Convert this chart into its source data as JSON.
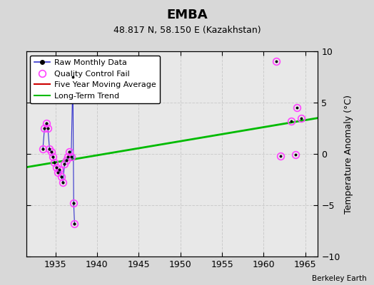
{
  "title": "EMBA",
  "subtitle": "48.817 N, 58.150 E (Kazakhstan)",
  "ylabel_right": "Temperature Anomaly (°C)",
  "credit": "Berkeley Earth",
  "xlim": [
    1931.5,
    1966.5
  ],
  "ylim": [
    -10,
    10
  ],
  "yticks": [
    -10,
    -5,
    0,
    5,
    10
  ],
  "xticks": [
    1935,
    1940,
    1945,
    1950,
    1955,
    1960,
    1965
  ],
  "bg_color": "#d8d8d8",
  "plot_bg_color": "#e8e8e8",
  "raw_x": [
    1933.5,
    1933.7,
    1933.9,
    1934.1,
    1934.3,
    1934.5,
    1934.7,
    1934.9,
    1935.1,
    1935.3,
    1935.5,
    1935.7,
    1935.9,
    1936.1,
    1936.3,
    1936.5,
    1936.7,
    1936.9,
    1937.1,
    1937.2,
    1937.3
  ],
  "raw_y": [
    0.5,
    2.5,
    3.0,
    2.5,
    0.5,
    0.2,
    -0.3,
    -0.8,
    -1.3,
    -1.8,
    -1.5,
    -2.2,
    -2.8,
    -1.0,
    -0.6,
    -0.3,
    0.2,
    -0.3,
    7.5,
    -4.8,
    -6.8
  ],
  "qc_x": [
    1933.5,
    1933.7,
    1933.9,
    1934.1,
    1934.3,
    1934.5,
    1934.7,
    1934.9,
    1935.1,
    1935.3,
    1935.5,
    1935.7,
    1935.9,
    1936.1,
    1936.3,
    1936.5,
    1936.7,
    1936.9,
    1937.1,
    1937.2,
    1937.3,
    1961.5,
    1962.0,
    1963.3,
    1963.8,
    1964.0,
    1964.5
  ],
  "qc_y": [
    0.5,
    2.5,
    3.0,
    2.5,
    0.5,
    0.2,
    -0.3,
    -0.8,
    -1.3,
    -1.8,
    -1.5,
    -2.2,
    -2.8,
    -1.0,
    -0.6,
    -0.3,
    0.2,
    -0.3,
    7.5,
    -4.8,
    -6.8,
    9.0,
    -0.2,
    3.2,
    -0.1,
    4.5,
    3.5
  ],
  "trend_x": [
    1931.5,
    1966.5
  ],
  "trend_y": [
    -1.3,
    3.5
  ],
  "raw_color": "#3333cc",
  "qc_color": "#ff44ff",
  "trend_color": "#00bb00",
  "moving_avg_color": "#cc0000",
  "grid_color": "#cccccc"
}
